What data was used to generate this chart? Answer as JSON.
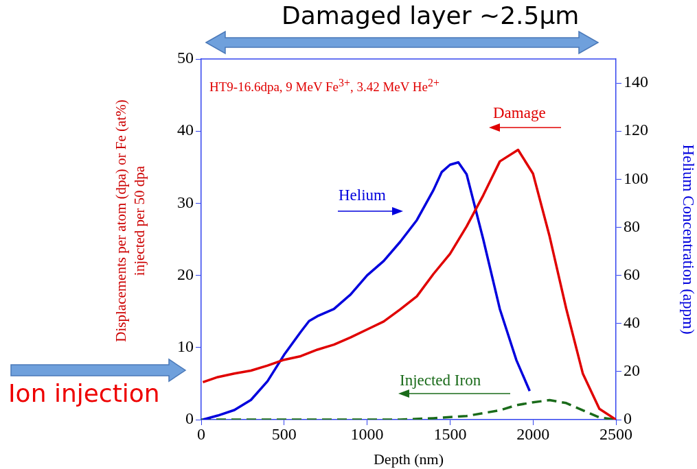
{
  "chart_data": {
    "type": "line",
    "xlabel": "Depth (nm)",
    "ylabel": "Displacements per atom (dpa) or Fe (at%) injected per 50 dpa",
    "y2label": "Helium Concentration (appm)",
    "annotations": [
      "HT9-16.6dpa,  9 MeV Fe$^{3+}$, 3.42 MeV He$^{2+}$",
      "Damaged layer ~2.5μm",
      "Ion injection"
    ],
    "xlim": [
      0,
      2500
    ],
    "xticks": [
      0,
      500,
      1000,
      1500,
      2000,
      2500
    ],
    "ylim": [
      0,
      50
    ],
    "yticks": [
      0,
      10,
      20,
      30,
      40,
      50
    ],
    "y2lim": [
      0,
      150
    ],
    "y2ticks": [
      0,
      20,
      40,
      60,
      80,
      100,
      120,
      140
    ],
    "grid": false,
    "legend": false,
    "marker": "none",
    "series": [
      {
        "name": "Damage",
        "color": "#e00000",
        "line_style": "solid",
        "x": [
          10,
          100,
          200,
          300,
          400,
          500,
          600,
          700,
          800,
          900,
          1000,
          1100,
          1200,
          1300,
          1400,
          1500,
          1600,
          1700,
          1800,
          1910,
          2000,
          2100,
          2200,
          2300,
          2400,
          2500
        ],
        "values": [
          5.2,
          5.9,
          6.4,
          6.8,
          7.5,
          8.3,
          8.8,
          9.7,
          10.4,
          11.4,
          12.5,
          13.6,
          15.3,
          17.1,
          20.2,
          23.0,
          26.8,
          31.1,
          35.8,
          37.4,
          34.1,
          25.4,
          15.4,
          6.4,
          1.5,
          0
        ]
      },
      {
        "name": "Helium",
        "color": "#0000dd",
        "line_style": "solid",
        "axis": "y2",
        "x": [
          10,
          100,
          200,
          300,
          400,
          500,
          600,
          650,
          700,
          800,
          900,
          1000,
          1100,
          1200,
          1300,
          1400,
          1450,
          1500,
          1550,
          1600,
          1700,
          1800,
          1900,
          1980
        ],
        "values": [
          0,
          1.7,
          4,
          8.2,
          16,
          27,
          36.5,
          41,
          43,
          46,
          52,
          60,
          66,
          74,
          83,
          95.5,
          103,
          106,
          107,
          102,
          75,
          46,
          24.7,
          11.9
        ]
      },
      {
        "name": "Injected Iron",
        "color": "#1a6b1a",
        "line_style": "dashed",
        "x": [
          0,
          1200,
          1400,
          1600,
          1800,
          1900,
          2000,
          2100,
          2200,
          2300,
          2400,
          2500
        ],
        "values": [
          0,
          0,
          0.2,
          0.5,
          1.3,
          2.0,
          2.4,
          2.7,
          2.3,
          1.3,
          0.3,
          0
        ]
      }
    ]
  }
}
